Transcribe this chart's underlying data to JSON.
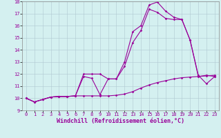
{
  "xlabel": "Windchill (Refroidissement éolien,°C)",
  "bg_color": "#d4f0f0",
  "grid_color": "#b0c8d0",
  "line_color": "#990099",
  "xlim": [
    -0.5,
    23.5
  ],
  "ylim": [
    9,
    18
  ],
  "xticks": [
    0,
    1,
    2,
    3,
    4,
    5,
    6,
    7,
    8,
    9,
    10,
    11,
    12,
    13,
    14,
    15,
    16,
    17,
    18,
    19,
    20,
    21,
    22,
    23
  ],
  "yticks": [
    9,
    10,
    11,
    12,
    13,
    14,
    15,
    16,
    17,
    18
  ],
  "line1_x": [
    0,
    1,
    2,
    3,
    4,
    5,
    6,
    7,
    8,
    9,
    10,
    11,
    12,
    13,
    14,
    15,
    16,
    17,
    18,
    19,
    20,
    21,
    22,
    23
  ],
  "line1_y": [
    10.0,
    9.7,
    9.9,
    10.1,
    10.15,
    10.15,
    10.2,
    10.2,
    10.2,
    10.2,
    10.2,
    10.25,
    10.35,
    10.55,
    10.85,
    11.1,
    11.3,
    11.45,
    11.6,
    11.7,
    11.75,
    11.8,
    11.85,
    11.9
  ],
  "line2_x": [
    0,
    1,
    2,
    3,
    4,
    5,
    6,
    7,
    8,
    9,
    10,
    11,
    12,
    13,
    14,
    15,
    16,
    17,
    18,
    19,
    20,
    21,
    22,
    23
  ],
  "line2_y": [
    10.0,
    9.7,
    9.9,
    10.1,
    10.15,
    10.15,
    10.2,
    11.8,
    11.65,
    10.3,
    11.6,
    11.6,
    12.65,
    14.6,
    15.6,
    17.35,
    17.1,
    16.6,
    16.5,
    16.5,
    14.8,
    11.8,
    11.9,
    11.8
  ],
  "line3_x": [
    0,
    1,
    2,
    3,
    4,
    5,
    6,
    7,
    8,
    9,
    10,
    11,
    12,
    13,
    14,
    15,
    16,
    17,
    18,
    19,
    20,
    21,
    22,
    23
  ],
  "line3_y": [
    10.0,
    9.7,
    9.9,
    10.1,
    10.15,
    10.15,
    10.2,
    12.0,
    12.0,
    12.0,
    11.6,
    11.6,
    13.0,
    15.5,
    16.0,
    17.7,
    17.95,
    17.2,
    16.7,
    16.5,
    14.8,
    11.9,
    11.2,
    11.8
  ],
  "marker": "D",
  "marker_size": 1.8,
  "line_width": 0.8,
  "tick_fontsize": 5.0,
  "label_fontsize": 6.0
}
